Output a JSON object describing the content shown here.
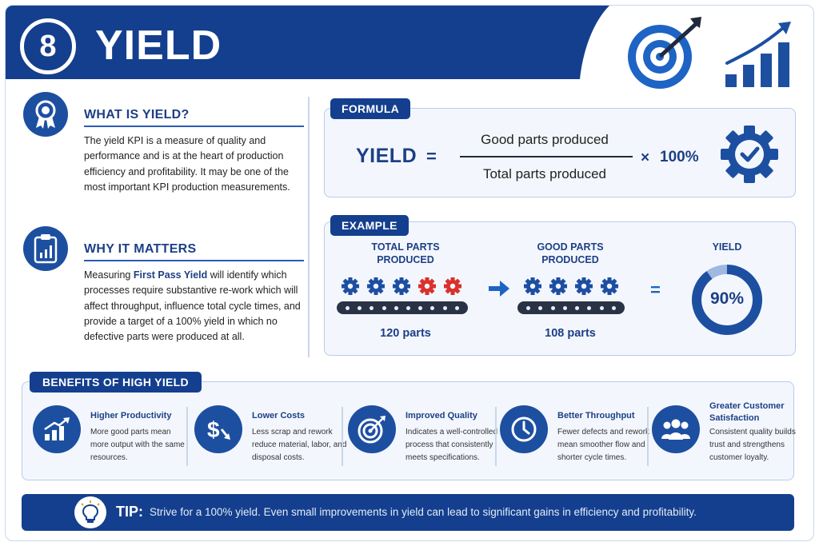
{
  "header": {
    "number": "8",
    "title": "YIELD"
  },
  "what": {
    "title": "WHAT IS YIELD?",
    "text": "The yield KPI is a measure of quality and performance and is at the heart of production efficiency and profitability. It may be one of the most important KPI production measurements."
  },
  "why": {
    "title": "WHY IT MATTERS",
    "text_before": "Measuring ",
    "highlight": "First Pass Yield",
    "text_after": " will identify which processes require substantive re-work which will affect throughput, influence total cycle times, and provide a target of a 100% yield in which no defective parts were produced at all."
  },
  "formula": {
    "tab": "FORMULA",
    "lhs": "YIELD",
    "equals": "=",
    "numerator": "Good parts produced",
    "denominator": "Total parts produced",
    "times": "×",
    "multiplier": "100%"
  },
  "example": {
    "tab": "EXAMPLE",
    "total_label_1": "TOTAL PARTS",
    "total_label_2": "PRODUCED",
    "good_label_1": "GOOD PARTS",
    "good_label_2": "PRODUCED",
    "yield_label": "YIELD",
    "total_parts": "120 parts",
    "good_parts": "108 parts",
    "equals": "=",
    "yield_value": "90%",
    "yield_fraction": 0.9,
    "colors": {
      "good": "#1d4fa1",
      "defect": "#d9322c"
    }
  },
  "benefits": {
    "tab": "BENEFITS OF HIGH YIELD",
    "items": [
      {
        "title": "Higher Productivity",
        "text": "More good parts mean more output with the same resources.",
        "icon": "bar-chart-up-icon"
      },
      {
        "title": "Lower Costs",
        "text": "Less scrap and rework reduce material, labor, and disposal costs.",
        "icon": "dollar-down-icon"
      },
      {
        "title": "Improved Quality",
        "text": "Indicates a well-controlled process that consistently meets specifications.",
        "icon": "target-icon"
      },
      {
        "title": "Better Throughput",
        "text": "Fewer defects and rework mean smoother flow and shorter cycle times.",
        "icon": "clock-icon"
      },
      {
        "title": "Greater Customer Satisfaction",
        "text": "Consistent quality builds trust and strengthens customer loyalty.",
        "icon": "people-icon"
      }
    ]
  },
  "tip": {
    "label": "TIP:",
    "text": "Strive for a 100% yield. Even small improvements in yield can lead to significant gains in efficiency and profitability."
  }
}
